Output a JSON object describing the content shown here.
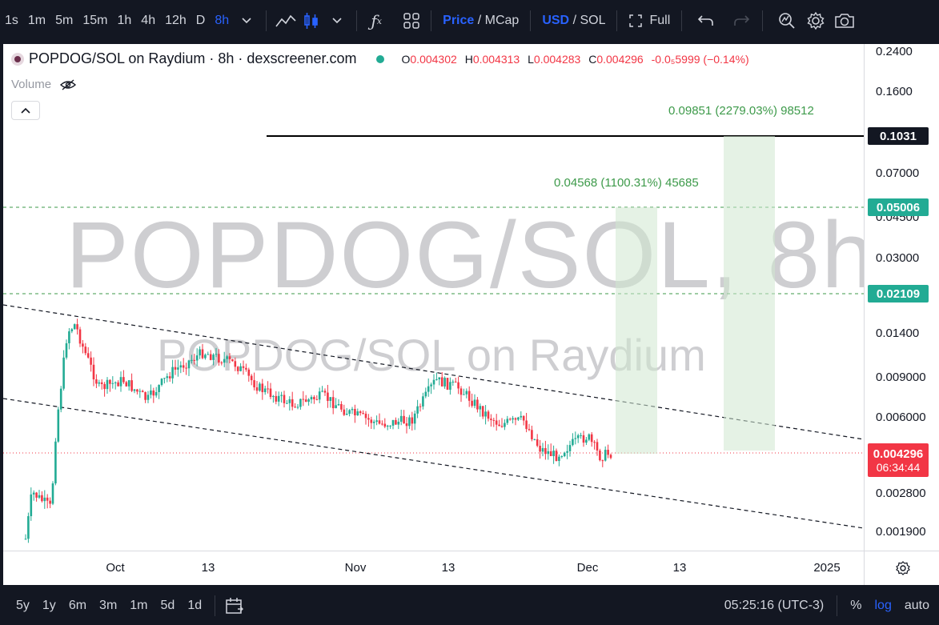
{
  "toolbar": {
    "intervals": [
      "1s",
      "1m",
      "5m",
      "15m",
      "1h",
      "4h",
      "12h",
      "D",
      "8h"
    ],
    "active_interval": "8h",
    "price_label": "Price",
    "mcap_label": "/ MCap",
    "usd_label": "USD",
    "sol_label": "/ SOL",
    "full_label": "Full",
    "icons": [
      "chevron-down-icon",
      "line-chart-icon",
      "candles-icon",
      "fx-indicator-icon",
      "layout-grid-icon",
      "fullscreen-icon",
      "undo-icon",
      "redo-icon",
      "quick-search-icon",
      "settings-icon",
      "camera-icon"
    ]
  },
  "legend": {
    "title": "POPDOG/SOL on Raydium · 8h · dexscreener.com",
    "o_label": "O",
    "o_value": "0.004302",
    "h_label": "H",
    "h_value": "0.004313",
    "l_label": "L",
    "l_value": "0.004283",
    "c_label": "C",
    "c_value": "0.004296",
    "change": "-0.0₅5999 (−0.14%)",
    "volume_label": "Volume"
  },
  "watermark": {
    "line1": "POPDOG/SOL, 8h",
    "line2": "POPDOG/SOL on Raydium"
  },
  "measurements": {
    "m1": "0.09851 (2279.03%) 98512",
    "m2": "0.04568 (1100.31%) 45685"
  },
  "price_axis": {
    "labels": [
      "0.2400",
      "0.1600",
      "0.07000",
      "0.04500",
      "0.03000",
      "0.01400",
      "0.009000",
      "0.006000",
      "0.002800",
      "0.001900"
    ],
    "box_black": "0.1031",
    "box_green1": "0.05006",
    "box_green2": "0.02109",
    "current_price": "0.004296",
    "countdown": "06:34:44",
    "colors": {
      "green": "#22ab94",
      "red": "#f23645",
      "black": "#131722"
    }
  },
  "time_axis": {
    "labels": [
      "Oct",
      "13",
      "Nov",
      "13",
      "Dec",
      "13",
      "2025"
    ]
  },
  "bottom": {
    "ranges": [
      "5y",
      "1y",
      "6m",
      "3m",
      "1m",
      "5d",
      "1d"
    ],
    "clock": "05:25:16 (UTC-3)",
    "percent_label": "%",
    "log_label": "log",
    "auto_label": "auto"
  }
}
